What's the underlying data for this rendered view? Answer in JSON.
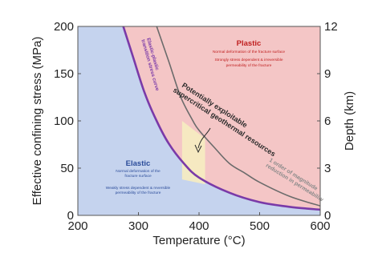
{
  "chart_data": {
    "type": "line",
    "xlabel": "Temperature (°C)",
    "ylabel_left": "Effective confining stress (MPa)",
    "ylabel_right": "Depth (km)",
    "xlim": [
      200,
      600
    ],
    "ylim_left": [
      0,
      200
    ],
    "ylim_right": [
      0,
      12
    ],
    "x_ticks": [
      200,
      300,
      400,
      500,
      600
    ],
    "y_ticks_left": [
      0,
      50,
      100,
      150,
      200
    ],
    "y_ticks_right": [
      0,
      3,
      6,
      9,
      12
    ],
    "grid": false,
    "colors": {
      "elastic_fill": "#c5d3ee",
      "plastic_fill": "#f4c6c6",
      "highlight_fill": "#f6ecc0",
      "transition_curve": "#7a3aa8",
      "permeability_curve": "#6b6b6b",
      "elastic_text": "#2b4c9a",
      "plastic_text": "#c02020",
      "transition_text": "#7a3aa8"
    },
    "series": [
      {
        "name": "Elastic-plastic transition stress curve",
        "x": [
          275,
          290,
          310,
          330,
          350,
          375,
          400,
          450,
          500,
          550,
          600
        ],
        "y": [
          200,
          170,
          130,
          100,
          76,
          55,
          40,
          24,
          14,
          9,
          6
        ]
      },
      {
        "name": "1 order of magnitude reduction in permeability",
        "x": [
          330,
          350,
          370,
          390,
          400,
          425,
          450,
          475,
          500,
          550,
          600
        ],
        "y": [
          200,
          163,
          125,
          100,
          90,
          72,
          55,
          45,
          35,
          20,
          10
        ]
      }
    ],
    "highlight_region": {
      "x": [
        372,
        410
      ],
      "y": [
        38,
        100
      ]
    },
    "annotations": {
      "plastic_title": "Plastic",
      "plastic_line1": "Normal deformation of the fracture surface",
      "plastic_line2": "Strongly stress dependent & irreversible",
      "plastic_line3": "permeability of the fracture",
      "elastic_title": "Elastic",
      "elastic_line1": "Normal deformation of the",
      "elastic_line2": "fracture surface",
      "elastic_line3": "Weakly stress dependent & reversible",
      "elastic_line4": "permeability of the fracture",
      "transition_line1": "Elastic-plastic",
      "transition_line2": "transition stress curve",
      "resources_line1": "Potentially exploitable",
      "resources_line2": "supercritical geothermal resources",
      "permeability_line1": "1 order of magnitude",
      "permeability_line2": "reduction in permeability"
    }
  }
}
